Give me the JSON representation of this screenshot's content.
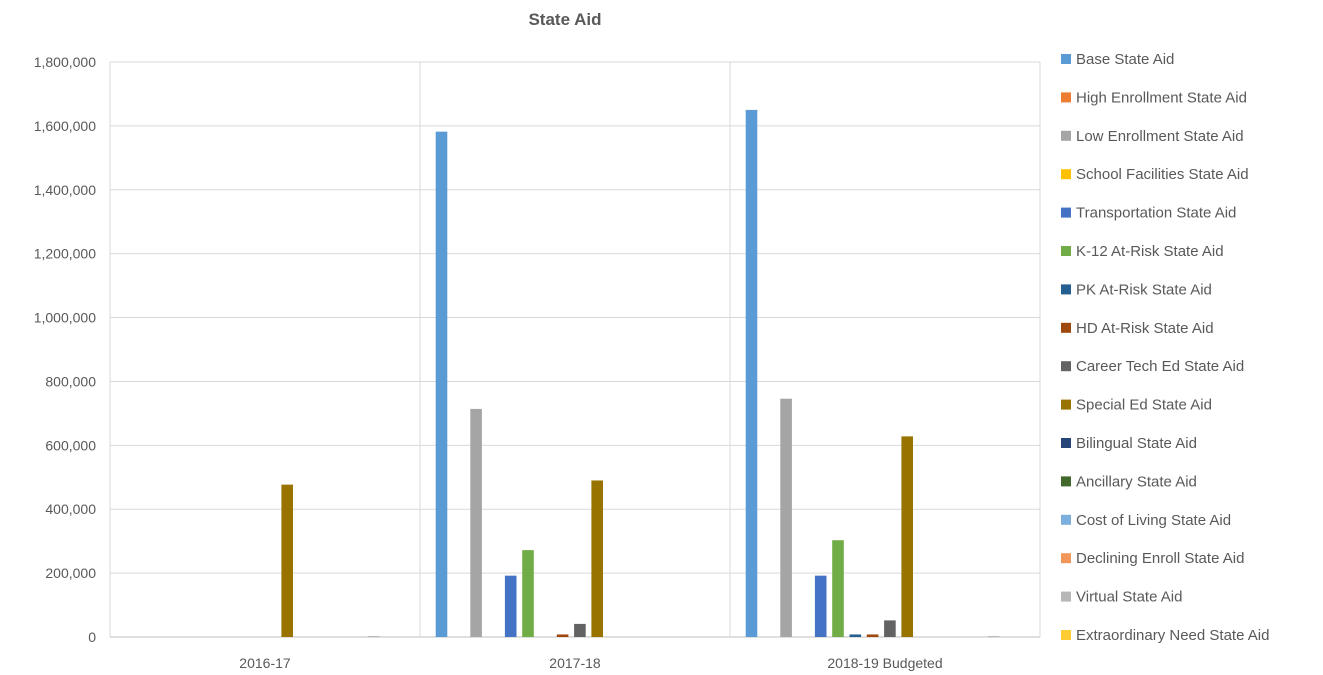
{
  "chart_data": {
    "type": "bar",
    "title": "State Aid",
    "xlabel": "",
    "ylabel": "",
    "ylim": [
      0,
      1800000
    ],
    "yticks": [
      "0",
      "200,000",
      "400,000",
      "600,000",
      "800,000",
      "1,000,000",
      "1,200,000",
      "1,400,000",
      "1,600,000",
      "1,800,000"
    ],
    "categories": [
      "2016-17",
      "2017-18",
      "2018-19 Budgeted"
    ],
    "legend_position": "right",
    "grid": true,
    "series": [
      {
        "name": "Base State Aid",
        "color": "#5B9BD5",
        "values": [
          0,
          1582000,
          1650000
        ]
      },
      {
        "name": "High Enrollment State Aid",
        "color": "#ED7D31",
        "values": [
          0,
          0,
          0
        ]
      },
      {
        "name": "Low Enrollment State Aid",
        "color": "#A5A5A5",
        "values": [
          0,
          714000,
          746000
        ]
      },
      {
        "name": "School Facilities State Aid",
        "color": "#FFC000",
        "values": [
          0,
          0,
          0
        ]
      },
      {
        "name": "Transportation State Aid",
        "color": "#4472C4",
        "values": [
          0,
          192000,
          192000
        ]
      },
      {
        "name": "K-12 At-Risk State Aid",
        "color": "#70AD47",
        "values": [
          0,
          272000,
          303000
        ]
      },
      {
        "name": "PK At-Risk State Aid",
        "color": "#255E91",
        "values": [
          0,
          0,
          8000
        ]
      },
      {
        "name": "HD At-Risk State Aid",
        "color": "#9E480E",
        "values": [
          0,
          8000,
          8000
        ]
      },
      {
        "name": "Career Tech Ed State Aid",
        "color": "#636363",
        "values": [
          0,
          41000,
          52000
        ]
      },
      {
        "name": "Special Ed State Aid",
        "color": "#997300",
        "values": [
          477000,
          490000,
          628000
        ]
      },
      {
        "name": "Bilingual State Aid",
        "color": "#264478",
        "values": [
          0,
          0,
          0
        ]
      },
      {
        "name": "Ancillary State Aid",
        "color": "#43682B",
        "values": [
          0,
          0,
          0
        ]
      },
      {
        "name": "Cost of Living State Aid",
        "color": "#7CAFDD",
        "values": [
          0,
          0,
          0
        ]
      },
      {
        "name": "Declining Enroll State Aid",
        "color": "#F1975A",
        "values": [
          0,
          0,
          0
        ]
      },
      {
        "name": "Virtual State Aid",
        "color": "#B7B7B7",
        "values": [
          3000,
          0,
          3000
        ]
      },
      {
        "name": "Extraordinary Need State Aid",
        "color": "#FFCD33",
        "values": [
          0,
          0,
          0
        ]
      }
    ]
  }
}
